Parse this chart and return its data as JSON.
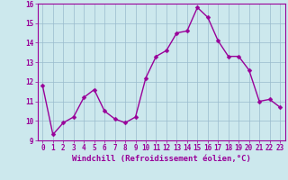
{
  "x": [
    0,
    1,
    2,
    3,
    4,
    5,
    6,
    7,
    8,
    9,
    10,
    11,
    12,
    13,
    14,
    15,
    16,
    17,
    18,
    19,
    20,
    21,
    22,
    23
  ],
  "y": [
    11.8,
    9.3,
    9.9,
    10.2,
    11.2,
    11.6,
    10.5,
    10.1,
    9.9,
    10.2,
    12.2,
    13.3,
    13.6,
    14.5,
    14.6,
    15.8,
    15.3,
    14.1,
    13.3,
    13.3,
    12.6,
    11.0,
    11.1,
    10.7
  ],
  "line_color": "#990099",
  "marker_color": "#990099",
  "bg_color": "#cce8ed",
  "grid_color": "#99bbcc",
  "xlabel": "Windchill (Refroidissement éolien,°C)",
  "ylim": [
    9,
    16
  ],
  "xlim_min": -0.5,
  "xlim_max": 23.5,
  "yticks": [
    9,
    10,
    11,
    12,
    13,
    14,
    15,
    16
  ],
  "xticks": [
    0,
    1,
    2,
    3,
    4,
    5,
    6,
    7,
    8,
    9,
    10,
    11,
    12,
    13,
    14,
    15,
    16,
    17,
    18,
    19,
    20,
    21,
    22,
    23
  ],
  "tick_fontsize": 5.5,
  "xlabel_fontsize": 6.5,
  "marker_size": 2.5,
  "line_width": 1.0
}
